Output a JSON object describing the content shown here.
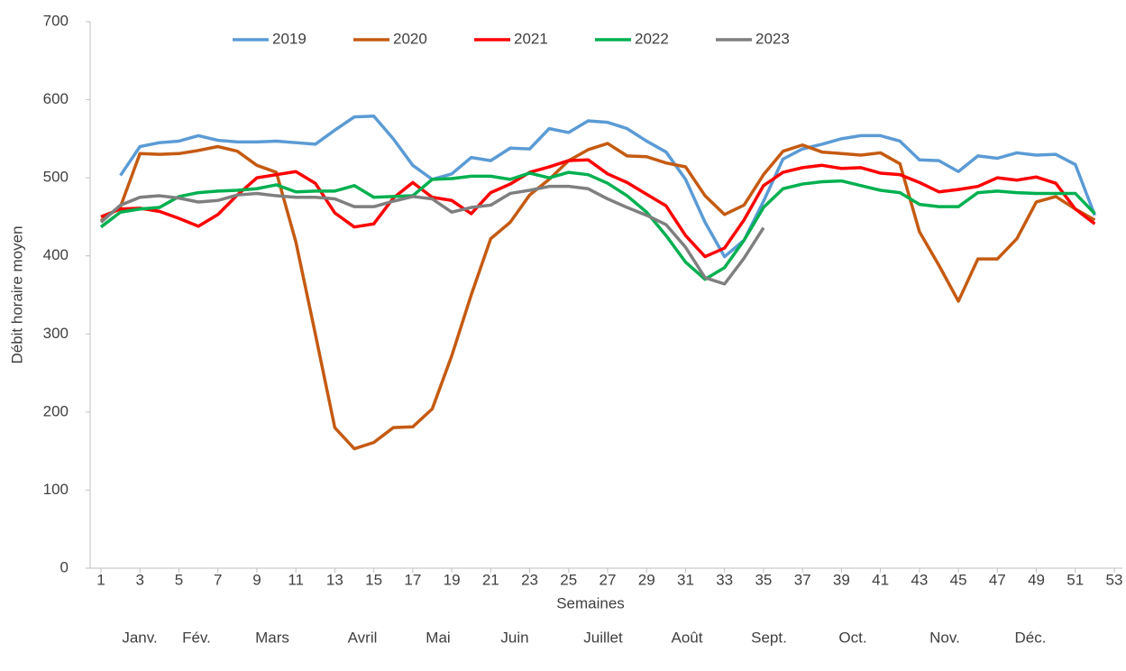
{
  "chart_data": {
    "type": "line",
    "xlabel": "Semaines",
    "ylabel": "Débit horaire moyen",
    "month_labels": [
      "Janv.",
      "Fév.",
      "Mars",
      "Avril",
      "Mai",
      "Juin",
      "Juillet",
      "Août",
      "Sept.",
      "Oct.",
      "Nov.",
      "Déc."
    ],
    "x": [
      1,
      2,
      3,
      4,
      5,
      6,
      7,
      8,
      9,
      10,
      11,
      12,
      13,
      14,
      15,
      16,
      17,
      18,
      19,
      20,
      21,
      22,
      23,
      24,
      25,
      26,
      27,
      28,
      29,
      30,
      31,
      32,
      33,
      34,
      35,
      36,
      37,
      38,
      39,
      40,
      41,
      42,
      43,
      44,
      45,
      46,
      47,
      48,
      49,
      50,
      51,
      52
    ],
    "xlim": [
      1,
      53
    ],
    "xticks": [
      1,
      3,
      5,
      7,
      9,
      11,
      13,
      15,
      17,
      19,
      21,
      23,
      25,
      27,
      29,
      31,
      33,
      35,
      37,
      39,
      41,
      43,
      45,
      47,
      49,
      51,
      53
    ],
    "ylim": [
      0,
      700
    ],
    "yticks": [
      0,
      100,
      200,
      300,
      400,
      500,
      600,
      700
    ],
    "grid": false,
    "legend": "top",
    "series": [
      {
        "name": "2019",
        "color": "#5b9bd5",
        "values": [
          null,
          503,
          540,
          545,
          547,
          554,
          548,
          546,
          546,
          547,
          545,
          543,
          561,
          578,
          579,
          550,
          516,
          498,
          505,
          526,
          522,
          538,
          537,
          563,
          558,
          573,
          571,
          563,
          547,
          533,
          498,
          443,
          399,
          420,
          470,
          524,
          537,
          543,
          550,
          554,
          554,
          547,
          523,
          522,
          508,
          528,
          525,
          532,
          529,
          530,
          517,
          452
        ]
      },
      {
        "name": "2020",
        "color": "#c55a11",
        "values": [
          445,
          463,
          531,
          530,
          531,
          535,
          540,
          534,
          516,
          507,
          418,
          300,
          180,
          153,
          161,
          180,
          181,
          204,
          272,
          350,
          422,
          443,
          478,
          498,
          522,
          536,
          544,
          528,
          527,
          519,
          514,
          477,
          453,
          465,
          504,
          534,
          542,
          533,
          531,
          529,
          532,
          518,
          431,
          388,
          342,
          396,
          396,
          422,
          469,
          476,
          460,
          446
        ]
      },
      {
        "name": "2021",
        "color": "#ff0000",
        "values": [
          450,
          460,
          461,
          457,
          448,
          438,
          453,
          478,
          500,
          504,
          508,
          493,
          455,
          437,
          441,
          474,
          494,
          475,
          471,
          454,
          481,
          492,
          507,
          514,
          522,
          523,
          505,
          494,
          479,
          464,
          426,
          399,
          410,
          446,
          490,
          507,
          513,
          516,
          512,
          513,
          506,
          504,
          494,
          482,
          485,
          489,
          500,
          497,
          501,
          493,
          460,
          441
        ]
      },
      {
        "name": "2022",
        "color": "#00b050",
        "values": [
          437,
          456,
          460,
          462,
          476,
          481,
          483,
          484,
          486,
          491,
          482,
          483,
          483,
          490,
          475,
          476,
          477,
          498,
          499,
          502,
          502,
          498,
          506,
          500,
          507,
          504,
          493,
          477,
          456,
          426,
          392,
          370,
          385,
          420,
          462,
          486,
          492,
          495,
          496,
          490,
          484,
          481,
          466,
          463,
          463,
          481,
          483,
          481,
          480,
          480,
          480,
          454
        ]
      },
      {
        "name": "2023",
        "color": "#7f7f7f",
        "values": [
          443,
          465,
          475,
          477,
          474,
          469,
          471,
          478,
          480,
          477,
          475,
          475,
          473,
          463,
          463,
          470,
          476,
          473,
          456,
          462,
          465,
          480,
          484,
          489,
          489,
          486,
          473,
          462,
          452,
          440,
          411,
          372,
          364,
          397,
          436,
          null,
          null,
          null,
          null,
          null,
          null,
          null,
          null,
          null,
          null,
          null,
          null,
          null,
          null,
          null,
          null,
          null
        ]
      }
    ]
  }
}
